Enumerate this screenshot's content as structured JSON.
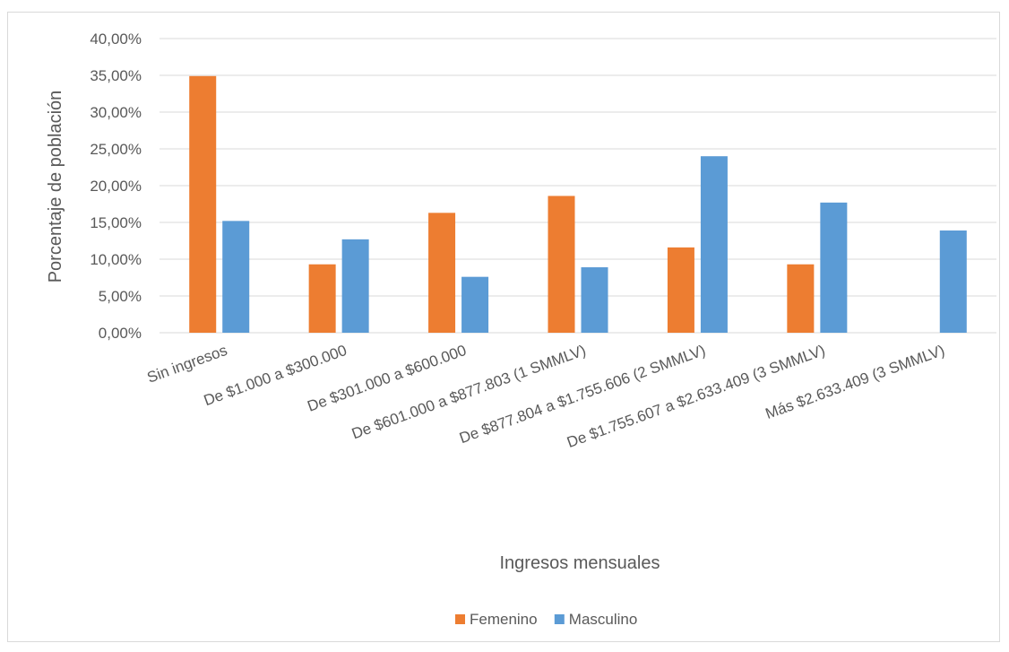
{
  "chart_data": {
    "type": "bar",
    "title": "",
    "xlabel": "Ingresos mensuales",
    "ylabel": "Porcentaje de población",
    "ylim": [
      0,
      40
    ],
    "y_ticks": [
      "0,00%",
      "5,00%",
      "10,00%",
      "15,00%",
      "20,00%",
      "25,00%",
      "30,00%",
      "35,00%",
      "40,00%"
    ],
    "grid": true,
    "legend_position": "bottom",
    "categories": [
      "Sin ingresos",
      "De $1.000 a $300.000",
      "De $301.000 a $600.000",
      "De $601.000 a $877.803 (1 SMMLV)",
      "De $877.804 a $1.755.606 (2 SMMLV)",
      "De $1.755.607 a $2.633.409 (3 SMMLV)",
      "Más $2.633.409 (3 SMMLV)"
    ],
    "series": [
      {
        "name": "Femenino",
        "color": "#ED7D31",
        "values": [
          34.9,
          9.3,
          16.3,
          18.6,
          11.6,
          9.3,
          0
        ]
      },
      {
        "name": "Masculino",
        "color": "#5B9BD5",
        "values": [
          15.2,
          12.7,
          7.6,
          8.9,
          24.0,
          17.7,
          13.9
        ]
      }
    ]
  }
}
